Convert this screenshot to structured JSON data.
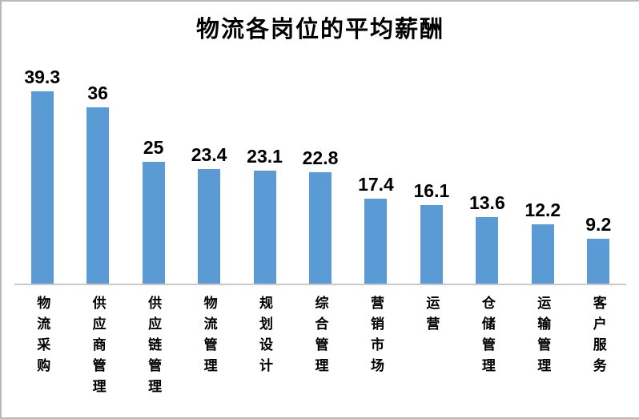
{
  "chart_data": {
    "type": "bar",
    "title": "物流各岗位的平均薪酬",
    "categories": [
      "物流采购",
      "供应商管理",
      "供应链管理",
      "物流管理",
      "规划设计",
      "综合管理",
      "营销市场",
      "运营",
      "仓储管理",
      "运输管理",
      "客户服务"
    ],
    "values": [
      39.3,
      36,
      25,
      23.4,
      23.1,
      22.8,
      17.4,
      16.1,
      13.6,
      12.2,
      9.2
    ],
    "xlabel": "",
    "ylabel": "",
    "ylim": [
      0,
      40
    ],
    "grid": false,
    "legend": "none",
    "data_labels": true,
    "bar_color": "#5B9BD5",
    "axis_line_color": "#C9C9C9",
    "label_orientation": "vertical-upright"
  }
}
